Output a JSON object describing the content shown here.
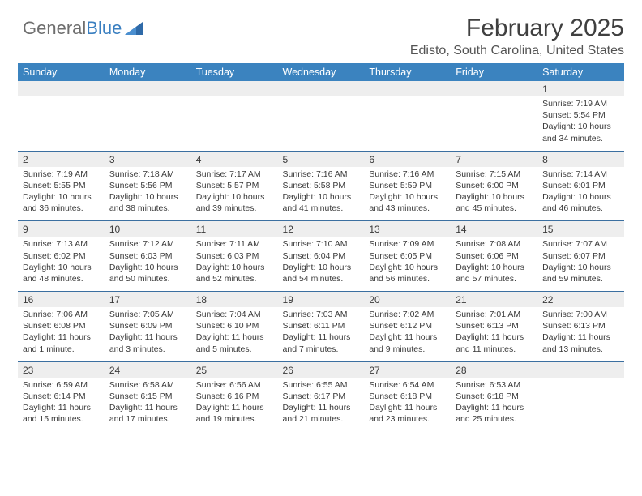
{
  "brand": {
    "part1": "General",
    "part2": "Blue"
  },
  "title": "February 2025",
  "location": "Edisto, South Carolina, United States",
  "colors": {
    "header_bg": "#3b83bf",
    "header_text": "#ffffff",
    "date_row_bg": "#eeeeee",
    "row_border": "#3b6fa0",
    "body_text": "#3a3a3a",
    "brand_gray": "#6e6e6e",
    "brand_blue": "#3a7fc0"
  },
  "layout": {
    "columns": 7,
    "rows": 5,
    "cell_font_size": 10.5,
    "date_font_size": 12
  },
  "day_headers": [
    "Sunday",
    "Monday",
    "Tuesday",
    "Wednesday",
    "Thursday",
    "Friday",
    "Saturday"
  ],
  "weeks": [
    {
      "dates": [
        "",
        "",
        "",
        "",
        "",
        "",
        "1"
      ],
      "details": [
        "",
        "",
        "",
        "",
        "",
        "",
        "Sunrise: 7:19 AM\nSunset: 5:54 PM\nDaylight: 10 hours and 34 minutes."
      ]
    },
    {
      "dates": [
        "2",
        "3",
        "4",
        "5",
        "6",
        "7",
        "8"
      ],
      "details": [
        "Sunrise: 7:19 AM\nSunset: 5:55 PM\nDaylight: 10 hours and 36 minutes.",
        "Sunrise: 7:18 AM\nSunset: 5:56 PM\nDaylight: 10 hours and 38 minutes.",
        "Sunrise: 7:17 AM\nSunset: 5:57 PM\nDaylight: 10 hours and 39 minutes.",
        "Sunrise: 7:16 AM\nSunset: 5:58 PM\nDaylight: 10 hours and 41 minutes.",
        "Sunrise: 7:16 AM\nSunset: 5:59 PM\nDaylight: 10 hours and 43 minutes.",
        "Sunrise: 7:15 AM\nSunset: 6:00 PM\nDaylight: 10 hours and 45 minutes.",
        "Sunrise: 7:14 AM\nSunset: 6:01 PM\nDaylight: 10 hours and 46 minutes."
      ]
    },
    {
      "dates": [
        "9",
        "10",
        "11",
        "12",
        "13",
        "14",
        "15"
      ],
      "details": [
        "Sunrise: 7:13 AM\nSunset: 6:02 PM\nDaylight: 10 hours and 48 minutes.",
        "Sunrise: 7:12 AM\nSunset: 6:03 PM\nDaylight: 10 hours and 50 minutes.",
        "Sunrise: 7:11 AM\nSunset: 6:03 PM\nDaylight: 10 hours and 52 minutes.",
        "Sunrise: 7:10 AM\nSunset: 6:04 PM\nDaylight: 10 hours and 54 minutes.",
        "Sunrise: 7:09 AM\nSunset: 6:05 PM\nDaylight: 10 hours and 56 minutes.",
        "Sunrise: 7:08 AM\nSunset: 6:06 PM\nDaylight: 10 hours and 57 minutes.",
        "Sunrise: 7:07 AM\nSunset: 6:07 PM\nDaylight: 10 hours and 59 minutes."
      ]
    },
    {
      "dates": [
        "16",
        "17",
        "18",
        "19",
        "20",
        "21",
        "22"
      ],
      "details": [
        "Sunrise: 7:06 AM\nSunset: 6:08 PM\nDaylight: 11 hours and 1 minute.",
        "Sunrise: 7:05 AM\nSunset: 6:09 PM\nDaylight: 11 hours and 3 minutes.",
        "Sunrise: 7:04 AM\nSunset: 6:10 PM\nDaylight: 11 hours and 5 minutes.",
        "Sunrise: 7:03 AM\nSunset: 6:11 PM\nDaylight: 11 hours and 7 minutes.",
        "Sunrise: 7:02 AM\nSunset: 6:12 PM\nDaylight: 11 hours and 9 minutes.",
        "Sunrise: 7:01 AM\nSunset: 6:13 PM\nDaylight: 11 hours and 11 minutes.",
        "Sunrise: 7:00 AM\nSunset: 6:13 PM\nDaylight: 11 hours and 13 minutes."
      ]
    },
    {
      "dates": [
        "23",
        "24",
        "25",
        "26",
        "27",
        "28",
        ""
      ],
      "details": [
        "Sunrise: 6:59 AM\nSunset: 6:14 PM\nDaylight: 11 hours and 15 minutes.",
        "Sunrise: 6:58 AM\nSunset: 6:15 PM\nDaylight: 11 hours and 17 minutes.",
        "Sunrise: 6:56 AM\nSunset: 6:16 PM\nDaylight: 11 hours and 19 minutes.",
        "Sunrise: 6:55 AM\nSunset: 6:17 PM\nDaylight: 11 hours and 21 minutes.",
        "Sunrise: 6:54 AM\nSunset: 6:18 PM\nDaylight: 11 hours and 23 minutes.",
        "Sunrise: 6:53 AM\nSunset: 6:18 PM\nDaylight: 11 hours and 25 minutes.",
        ""
      ]
    }
  ]
}
